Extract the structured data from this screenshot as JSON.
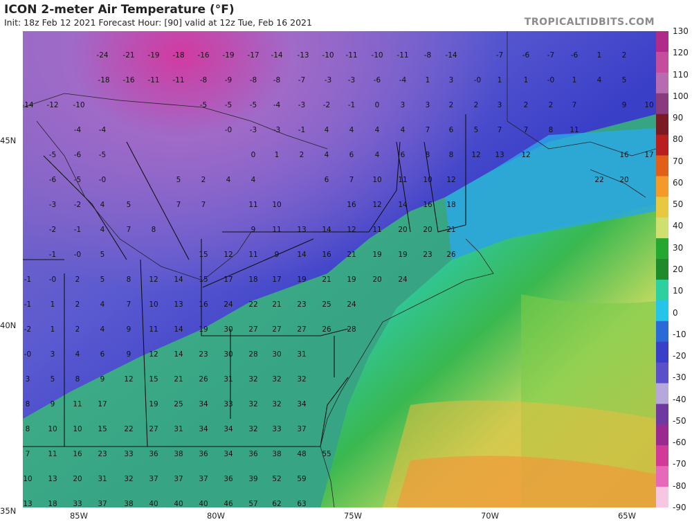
{
  "header": {
    "title": "ICON 2-meter Air Temperature (°F)",
    "subtitle": "Init: 18z Feb 12 2021   Forecast Hour: [90]   valid at 12z Tue, Feb 16 2021",
    "brand": "TROPICALTIDBITS.COM"
  },
  "colorbar": {
    "labels": [
      "130",
      "120",
      "110",
      "100",
      "90",
      "80",
      "70",
      "60",
      "50",
      "40",
      "30",
      "20",
      "10",
      "0",
      "-10",
      "-20",
      "-30",
      "-40",
      "-50",
      "-60",
      "-70",
      "-80",
      "-90"
    ],
    "stops": [
      "#b02a8a",
      "#c44d9e",
      "#b76bb0",
      "#8a3b7e",
      "#7a1a22",
      "#b81f1f",
      "#e0601a",
      "#f39a2a",
      "#e8c840",
      "#cfe070",
      "#26a830",
      "#1f8a2a",
      "#2fd0a0",
      "#26c4e8",
      "#2a6ad8",
      "#3a3fc8",
      "#5a50c8",
      "#b7a8dc",
      "#6f3aa0",
      "#9a2a90",
      "#d23a9a",
      "#e66ab8",
      "#f7c6e0"
    ]
  },
  "axes": {
    "lat": [
      "45N",
      "40N",
      "35N"
    ],
    "lon": [
      "85W",
      "80W",
      "75W",
      "70W",
      "65W"
    ]
  },
  "point_values": [
    [
      "-24",
      148,
      80
    ],
    [
      "-21",
      186,
      80
    ],
    [
      "-19",
      222,
      80
    ],
    [
      "-18",
      258,
      80
    ],
    [
      "-16",
      294,
      80
    ],
    [
      "-19",
      330,
      80
    ],
    [
      "-17",
      366,
      80
    ],
    [
      "-14",
      400,
      80
    ],
    [
      "-13",
      438,
      80
    ],
    [
      "-10",
      474,
      80
    ],
    [
      "-11",
      508,
      80
    ],
    [
      "-10",
      545,
      80
    ],
    [
      "-11",
      582,
      80
    ],
    [
      "-8",
      618,
      80
    ],
    [
      "-14",
      652,
      80
    ],
    [
      "-7",
      722,
      80
    ],
    [
      "-6",
      760,
      80
    ],
    [
      "-7",
      796,
      80
    ],
    [
      "-6",
      830,
      80
    ],
    [
      "1",
      866,
      80
    ],
    [
      "2",
      902,
      80
    ],
    [
      "-18",
      150,
      116
    ],
    [
      "-16",
      186,
      116
    ],
    [
      "-11",
      222,
      116
    ],
    [
      "-11",
      258,
      116
    ],
    [
      "-8",
      294,
      116
    ],
    [
      "-9",
      330,
      116
    ],
    [
      "-8",
      366,
      116
    ],
    [
      "-8",
      400,
      116
    ],
    [
      "-7",
      436,
      116
    ],
    [
      "-3",
      474,
      116
    ],
    [
      "-3",
      508,
      116
    ],
    [
      "-6",
      545,
      116
    ],
    [
      "-4",
      582,
      116
    ],
    [
      "1",
      618,
      116
    ],
    [
      "3",
      652,
      116
    ],
    [
      "-0",
      690,
      116
    ],
    [
      "1",
      722,
      116
    ],
    [
      "1",
      760,
      116
    ],
    [
      "-0",
      796,
      116
    ],
    [
      "1",
      830,
      116
    ],
    [
      "4",
      866,
      116
    ],
    [
      "5",
      902,
      116
    ],
    [
      "-14",
      40,
      152
    ],
    [
      "-12",
      76,
      152
    ],
    [
      "-10",
      114,
      152
    ],
    [
      "-5",
      294,
      152
    ],
    [
      "-5",
      330,
      152
    ],
    [
      "-5",
      366,
      152
    ],
    [
      "-4",
      400,
      152
    ],
    [
      "-3",
      436,
      152
    ],
    [
      "-2",
      472,
      152
    ],
    [
      "-1",
      508,
      152
    ],
    [
      "0",
      545,
      152
    ],
    [
      "3",
      582,
      152
    ],
    [
      "3",
      618,
      152
    ],
    [
      "2",
      652,
      152
    ],
    [
      "2",
      688,
      152
    ],
    [
      "3",
      722,
      152
    ],
    [
      "2",
      760,
      152
    ],
    [
      "2",
      796,
      152
    ],
    [
      "7",
      830,
      152
    ],
    [
      "9",
      902,
      152
    ],
    [
      "10",
      938,
      152
    ],
    [
      "-4",
      112,
      188
    ],
    [
      "-4",
      148,
      188
    ],
    [
      "-0",
      330,
      188
    ],
    [
      "-3",
      366,
      188
    ],
    [
      "-3",
      400,
      188
    ],
    [
      "-1",
      436,
      188
    ],
    [
      "4",
      472,
      188
    ],
    [
      "4",
      508,
      188
    ],
    [
      "4",
      545,
      188
    ],
    [
      "4",
      582,
      188
    ],
    [
      "7",
      618,
      188
    ],
    [
      "6",
      652,
      188
    ],
    [
      "5",
      688,
      188
    ],
    [
      "7",
      722,
      188
    ],
    [
      "7",
      760,
      188
    ],
    [
      "8",
      796,
      188
    ],
    [
      "11",
      830,
      188
    ],
    [
      "-5",
      76,
      224
    ],
    [
      "-6",
      112,
      224
    ],
    [
      "-5",
      148,
      224
    ],
    [
      "0",
      366,
      224
    ],
    [
      "1",
      400,
      224
    ],
    [
      "2",
      436,
      224
    ],
    [
      "4",
      472,
      224
    ],
    [
      "6",
      508,
      224
    ],
    [
      "4",
      545,
      224
    ],
    [
      "6",
      582,
      224
    ],
    [
      "8",
      618,
      224
    ],
    [
      "8",
      652,
      224
    ],
    [
      "12",
      688,
      224
    ],
    [
      "13",
      722,
      224
    ],
    [
      "12",
      760,
      224
    ],
    [
      "16",
      902,
      224
    ],
    [
      "17",
      938,
      224
    ],
    [
      "-6",
      76,
      260
    ],
    [
      "-5",
      112,
      260
    ],
    [
      "-0",
      148,
      260
    ],
    [
      "5",
      258,
      260
    ],
    [
      "2",
      294,
      260
    ],
    [
      "4",
      330,
      260
    ],
    [
      "4",
      366,
      260
    ],
    [
      "6",
      472,
      260
    ],
    [
      "7",
      508,
      260
    ],
    [
      "10",
      545,
      260
    ],
    [
      "11",
      582,
      260
    ],
    [
      "10",
      618,
      260
    ],
    [
      "12",
      652,
      260
    ],
    [
      "22",
      866,
      260
    ],
    [
      "20",
      902,
      260
    ],
    [
      "-3",
      76,
      296
    ],
    [
      "-2",
      112,
      296
    ],
    [
      "4",
      148,
      296
    ],
    [
      "5",
      186,
      296
    ],
    [
      "7",
      258,
      296
    ],
    [
      "7",
      294,
      296
    ],
    [
      "11",
      366,
      296
    ],
    [
      "10",
      400,
      296
    ],
    [
      "16",
      508,
      296
    ],
    [
      "12",
      545,
      296
    ],
    [
      "14",
      582,
      296
    ],
    [
      "16",
      618,
      296
    ],
    [
      "18",
      652,
      296
    ],
    [
      "-2",
      76,
      332
    ],
    [
      "-1",
      112,
      332
    ],
    [
      "4",
      148,
      332
    ],
    [
      "7",
      186,
      332
    ],
    [
      "8",
      222,
      332
    ],
    [
      "9",
      366,
      332
    ],
    [
      "11",
      400,
      332
    ],
    [
      "13",
      436,
      332
    ],
    [
      "14",
      472,
      332
    ],
    [
      "12",
      508,
      332
    ],
    [
      "11",
      545,
      332
    ],
    [
      "20",
      582,
      332
    ],
    [
      "20",
      618,
      332
    ],
    [
      "21",
      652,
      332
    ],
    [
      "-1",
      76,
      368
    ],
    [
      "-0",
      112,
      368
    ],
    [
      "5",
      148,
      368
    ],
    [
      "15",
      294,
      368
    ],
    [
      "12",
      330,
      368
    ],
    [
      "11",
      366,
      368
    ],
    [
      "9",
      400,
      368
    ],
    [
      "14",
      436,
      368
    ],
    [
      "16",
      472,
      368
    ],
    [
      "21",
      508,
      368
    ],
    [
      "19",
      545,
      368
    ],
    [
      "19",
      582,
      368
    ],
    [
      "23",
      618,
      368
    ],
    [
      "26",
      652,
      368
    ],
    [
      "-1",
      40,
      404
    ],
    [
      "-0",
      76,
      404
    ],
    [
      "2",
      112,
      404
    ],
    [
      "5",
      148,
      404
    ],
    [
      "8",
      186,
      404
    ],
    [
      "12",
      222,
      404
    ],
    [
      "14",
      258,
      404
    ],
    [
      "15",
      294,
      404
    ],
    [
      "17",
      330,
      404
    ],
    [
      "18",
      366,
      404
    ],
    [
      "17",
      400,
      404
    ],
    [
      "19",
      436,
      404
    ],
    [
      "21",
      472,
      404
    ],
    [
      "19",
      508,
      404
    ],
    [
      "20",
      545,
      404
    ],
    [
      "24",
      582,
      404
    ],
    [
      "-1",
      40,
      440
    ],
    [
      "1",
      76,
      440
    ],
    [
      "2",
      112,
      440
    ],
    [
      "4",
      148,
      440
    ],
    [
      "7",
      186,
      440
    ],
    [
      "10",
      222,
      440
    ],
    [
      "13",
      258,
      440
    ],
    [
      "16",
      294,
      440
    ],
    [
      "24",
      330,
      440
    ],
    [
      "22",
      366,
      440
    ],
    [
      "21",
      400,
      440
    ],
    [
      "23",
      436,
      440
    ],
    [
      "25",
      472,
      440
    ],
    [
      "24",
      508,
      440
    ],
    [
      "-2",
      40,
      476
    ],
    [
      "1",
      76,
      476
    ],
    [
      "2",
      112,
      476
    ],
    [
      "4",
      148,
      476
    ],
    [
      "9",
      186,
      476
    ],
    [
      "11",
      222,
      476
    ],
    [
      "14",
      258,
      476
    ],
    [
      "19",
      294,
      476
    ],
    [
      "30",
      330,
      476
    ],
    [
      "27",
      366,
      476
    ],
    [
      "27",
      400,
      476
    ],
    [
      "27",
      436,
      476
    ],
    [
      "26",
      472,
      476
    ],
    [
      "28",
      508,
      476
    ],
    [
      "-0",
      40,
      512
    ],
    [
      "3",
      76,
      512
    ],
    [
      "4",
      112,
      512
    ],
    [
      "6",
      148,
      512
    ],
    [
      "9",
      186,
      512
    ],
    [
      "12",
      222,
      512
    ],
    [
      "14",
      258,
      512
    ],
    [
      "23",
      294,
      512
    ],
    [
      "30",
      330,
      512
    ],
    [
      "28",
      366,
      512
    ],
    [
      "30",
      400,
      512
    ],
    [
      "31",
      436,
      512
    ],
    [
      "3",
      40,
      548
    ],
    [
      "5",
      76,
      548
    ],
    [
      "8",
      112,
      548
    ],
    [
      "9",
      148,
      548
    ],
    [
      "12",
      186,
      548
    ],
    [
      "15",
      222,
      548
    ],
    [
      "21",
      258,
      548
    ],
    [
      "26",
      294,
      548
    ],
    [
      "31",
      330,
      548
    ],
    [
      "32",
      366,
      548
    ],
    [
      "32",
      400,
      548
    ],
    [
      "32",
      436,
      548
    ],
    [
      "8",
      40,
      584
    ],
    [
      "9",
      76,
      584
    ],
    [
      "11",
      112,
      584
    ],
    [
      "17",
      148,
      584
    ],
    [
      "19",
      222,
      584
    ],
    [
      "25",
      258,
      584
    ],
    [
      "34",
      294,
      584
    ],
    [
      "33",
      330,
      584
    ],
    [
      "32",
      366,
      584
    ],
    [
      "32",
      400,
      584
    ],
    [
      "34",
      436,
      584
    ],
    [
      "8",
      40,
      620
    ],
    [
      "10",
      76,
      620
    ],
    [
      "10",
      112,
      620
    ],
    [
      "15",
      148,
      620
    ],
    [
      "22",
      186,
      620
    ],
    [
      "27",
      222,
      620
    ],
    [
      "31",
      258,
      620
    ],
    [
      "34",
      294,
      620
    ],
    [
      "34",
      330,
      620
    ],
    [
      "32",
      366,
      620
    ],
    [
      "33",
      400,
      620
    ],
    [
      "37",
      436,
      620
    ],
    [
      "7",
      40,
      656
    ],
    [
      "11",
      76,
      656
    ],
    [
      "16",
      112,
      656
    ],
    [
      "23",
      148,
      656
    ],
    [
      "33",
      186,
      656
    ],
    [
      "36",
      222,
      656
    ],
    [
      "38",
      258,
      656
    ],
    [
      "36",
      294,
      656
    ],
    [
      "34",
      330,
      656
    ],
    [
      "36",
      366,
      656
    ],
    [
      "38",
      400,
      656
    ],
    [
      "48",
      436,
      656
    ],
    [
      "55",
      472,
      656
    ],
    [
      "10",
      40,
      692
    ],
    [
      "13",
      76,
      692
    ],
    [
      "20",
      112,
      692
    ],
    [
      "31",
      148,
      692
    ],
    [
      "32",
      186,
      692
    ],
    [
      "37",
      222,
      692
    ],
    [
      "37",
      258,
      692
    ],
    [
      "37",
      294,
      692
    ],
    [
      "36",
      330,
      692
    ],
    [
      "39",
      366,
      692
    ],
    [
      "52",
      400,
      692
    ],
    [
      "59",
      436,
      692
    ],
    [
      "13",
      40,
      728
    ],
    [
      "18",
      76,
      728
    ],
    [
      "33",
      112,
      728
    ],
    [
      "37",
      148,
      728
    ],
    [
      "38",
      186,
      728
    ],
    [
      "40",
      222,
      728
    ],
    [
      "40",
      258,
      728
    ],
    [
      "40",
      294,
      728
    ],
    [
      "46",
      330,
      728
    ],
    [
      "57",
      366,
      728
    ],
    [
      "62",
      400,
      728
    ],
    [
      "63",
      436,
      728
    ]
  ]
}
